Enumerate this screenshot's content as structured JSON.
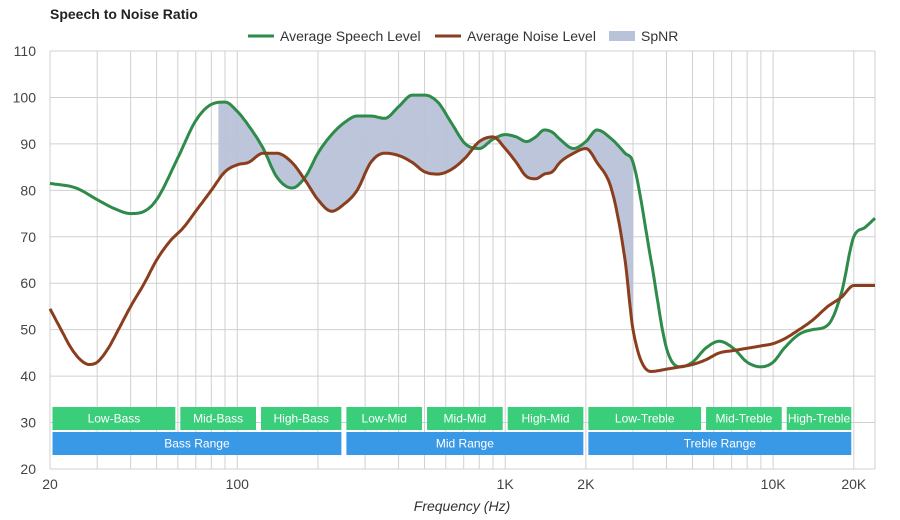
{
  "chart_data": {
    "type": "line",
    "title": "Speech to Noise Ratio",
    "xlabel": "Frequency (Hz)",
    "ylabel": "",
    "xscale": "log",
    "xlim": [
      20,
      24000
    ],
    "ylim": [
      20,
      110
    ],
    "yticks": [
      20,
      30,
      40,
      50,
      60,
      70,
      80,
      90,
      100,
      110
    ],
    "xticks": [
      {
        "value": 20,
        "label": "20"
      },
      {
        "value": 100,
        "label": "100"
      },
      {
        "value": 1000,
        "label": "1K"
      },
      {
        "value": 2000,
        "label": "2K"
      },
      {
        "value": 10000,
        "label": "10K"
      },
      {
        "value": 20000,
        "label": "20K"
      }
    ],
    "grid": true,
    "legend_position": "top-center",
    "series": [
      {
        "name": "Average Speech Level",
        "color": "#2e8b4a",
        "x": [
          20,
          25,
          30,
          35,
          40,
          45,
          50,
          60,
          70,
          80,
          90,
          100,
          110,
          125,
          140,
          160,
          180,
          200,
          225,
          250,
          280,
          315,
          355,
          400,
          450,
          500,
          560,
          630,
          710,
          800,
          900,
          1000,
          1100,
          1200,
          1300,
          1400,
          1500,
          1600,
          1800,
          2000,
          2200,
          2500,
          2800,
          3000,
          3500,
          4000,
          4500,
          5000,
          5600,
          6300,
          7100,
          8000,
          9000,
          10000,
          11000,
          12500,
          14000,
          16000,
          18000,
          20000,
          22000,
          24000
        ],
        "values": [
          81.5,
          80.5,
          78,
          76,
          75,
          75.5,
          78,
          87,
          95,
          98.5,
          99,
          97,
          94,
          89,
          83,
          80.5,
          83,
          88,
          92,
          94.5,
          96,
          96,
          95.5,
          98,
          100.5,
          100.5,
          99,
          94.5,
          90,
          89,
          91,
          92,
          91.5,
          90.5,
          91.5,
          93,
          92.5,
          91,
          89,
          90.5,
          93,
          91,
          88,
          86,
          65,
          46,
          42,
          43,
          46,
          47.5,
          46,
          43,
          42,
          43,
          46,
          49,
          50,
          51,
          58,
          70,
          72,
          74
        ]
      },
      {
        "name": "Average Noise Level",
        "color": "#8b3e1e",
        "x": [
          20,
          22,
          24,
          26,
          28,
          30,
          33,
          36,
          40,
          45,
          50,
          56,
          63,
          71,
          80,
          90,
          100,
          110,
          125,
          140,
          160,
          180,
          200,
          225,
          250,
          280,
          315,
          355,
          400,
          450,
          500,
          560,
          630,
          710,
          800,
          900,
          1000,
          1100,
          1200,
          1300,
          1400,
          1500,
          1600,
          1800,
          2000,
          2200,
          2500,
          2800,
          3000,
          3500,
          4000,
          4500,
          5000,
          5600,
          6300,
          7100,
          8000,
          9000,
          10000,
          11000,
          12500,
          14000,
          16000,
          18000,
          20000,
          22000,
          24000
        ],
        "values": [
          54.5,
          50,
          46,
          43.5,
          42.5,
          43,
          46,
          50,
          55,
          60,
          65,
          69,
          72,
          76,
          80,
          84,
          85.5,
          86,
          88,
          88,
          86,
          82,
          78,
          75.5,
          77,
          80,
          86,
          88,
          87.5,
          86,
          84,
          83.5,
          84.5,
          87,
          90.5,
          91.5,
          89,
          86,
          83,
          82.5,
          83.5,
          84,
          86,
          88,
          89,
          86,
          80,
          65,
          50,
          41,
          41.5,
          42,
          42.5,
          43.5,
          45,
          45.5,
          46,
          46.5,
          47,
          48,
          50,
          52,
          55,
          57,
          59.5,
          59.5,
          59.5
        ]
      }
    ],
    "fill_between": {
      "name": "SpNR",
      "color": "#b8c2d8",
      "x_from": 85,
      "x_to": 3000
    },
    "ranges_row1": [
      {
        "label": "Low-Bass",
        "from": 20,
        "to": 60
      },
      {
        "label": "Mid-Bass",
        "from": 60,
        "to": 120
      },
      {
        "label": "High-Bass",
        "from": 120,
        "to": 250
      },
      {
        "label": "Low-Mid",
        "from": 250,
        "to": 500
      },
      {
        "label": "Mid-Mid",
        "from": 500,
        "to": 1000
      },
      {
        "label": "High-Mid",
        "from": 1000,
        "to": 2000
      },
      {
        "label": "Low-Treble",
        "from": 2000,
        "to": 5500
      },
      {
        "label": "Mid-Treble",
        "from": 5500,
        "to": 11000
      },
      {
        "label": "High-Treble",
        "from": 11000,
        "to": 20000
      }
    ],
    "ranges_row2": [
      {
        "label": "Bass Range",
        "from": 20,
        "to": 250
      },
      {
        "label": "Mid Range",
        "from": 250,
        "to": 2000
      },
      {
        "label": "Treble Range",
        "from": 2000,
        "to": 20000
      }
    ],
    "range_colors": {
      "row1": "#3acd7a",
      "row2": "#3a99e6"
    }
  }
}
